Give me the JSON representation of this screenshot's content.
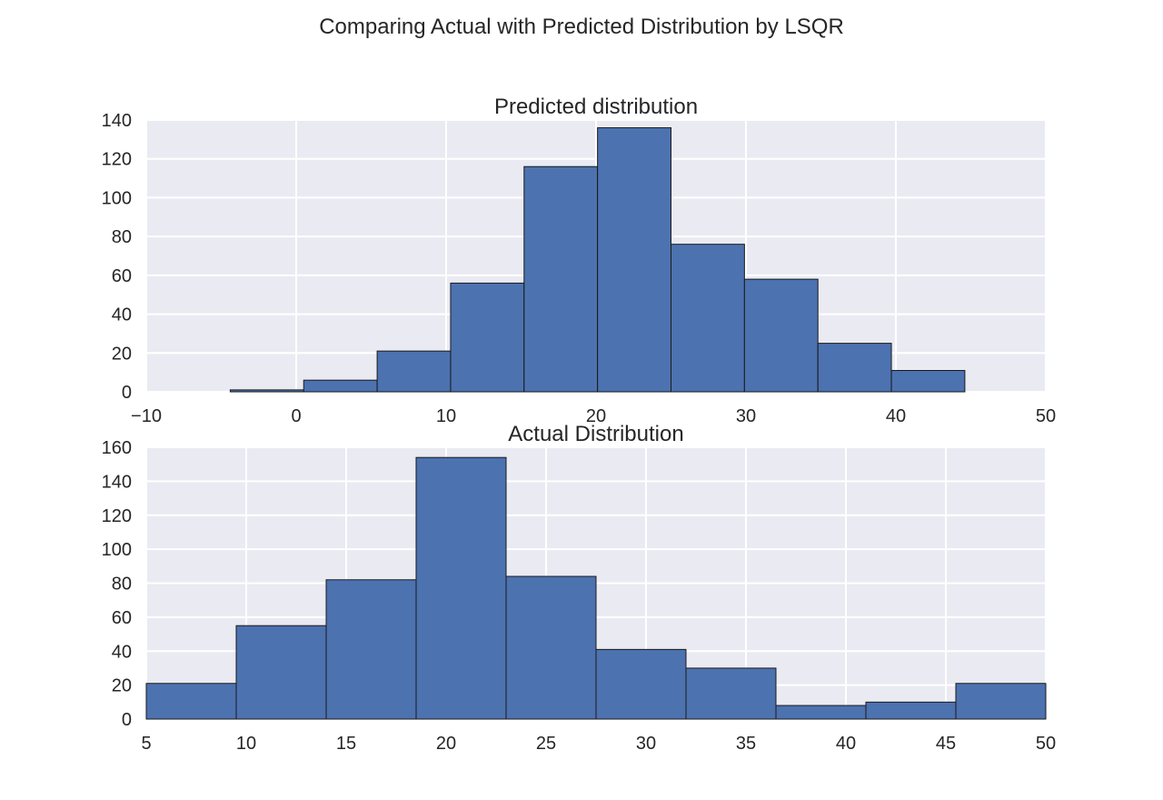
{
  "figure": {
    "title": "Comparing Actual with Predicted Distribution by LSQR",
    "colors": {
      "bar_fill": "#4c72b0",
      "bar_edge": "#1a1a1a",
      "plot_background": "#eaeaf2",
      "grid": "#ffffff"
    }
  },
  "chart_data": [
    {
      "type": "bar",
      "title": "Predicted distribution",
      "xlabel": "",
      "ylabel": "",
      "xlim": [
        -10,
        50
      ],
      "ylim": [
        0,
        140
      ],
      "xticks": [
        -10,
        0,
        10,
        20,
        30,
        40,
        50
      ],
      "yticks": [
        0,
        20,
        40,
        60,
        80,
        100,
        120,
        140
      ],
      "xtick_labels": [
        "−10",
        "0",
        "10",
        "20",
        "30",
        "40",
        "50"
      ],
      "ytick_labels": [
        "0",
        "20",
        "40",
        "60",
        "80",
        "100",
        "120",
        "140"
      ],
      "grid": true,
      "bin_edges": [
        -4.4,
        0.5,
        5.4,
        10.3,
        15.2,
        20.1,
        25.0,
        29.9,
        34.8,
        39.7,
        44.6
      ],
      "values": [
        1,
        6,
        21,
        56,
        116,
        136,
        76,
        58,
        25,
        11
      ]
    },
    {
      "type": "bar",
      "title": "Actual Distribution",
      "xlabel": "",
      "ylabel": "",
      "xlim": [
        5,
        50
      ],
      "ylim": [
        0,
        160
      ],
      "xticks": [
        5,
        10,
        15,
        20,
        25,
        30,
        35,
        40,
        45,
        50
      ],
      "yticks": [
        0,
        20,
        40,
        60,
        80,
        100,
        120,
        140,
        160
      ],
      "xtick_labels": [
        "5",
        "10",
        "15",
        "20",
        "25",
        "30",
        "35",
        "40",
        "45",
        "50"
      ],
      "ytick_labels": [
        "0",
        "20",
        "40",
        "60",
        "80",
        "100",
        "120",
        "140",
        "160"
      ],
      "grid": true,
      "bin_edges": [
        5.0,
        9.5,
        14.0,
        18.5,
        23.0,
        27.5,
        32.0,
        36.5,
        41.0,
        45.5,
        50.0
      ],
      "values": [
        21,
        55,
        82,
        154,
        84,
        41,
        30,
        8,
        10,
        21
      ]
    }
  ]
}
